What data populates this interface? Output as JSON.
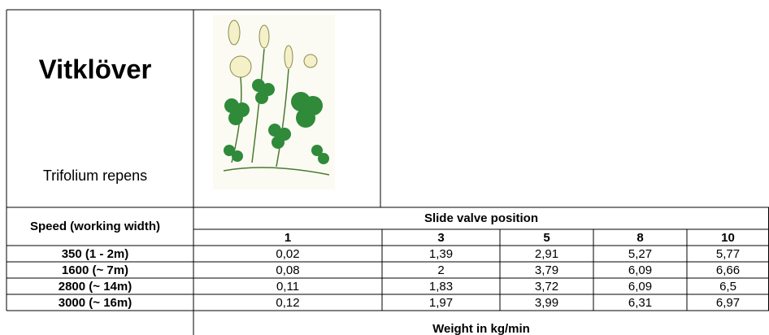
{
  "header": {
    "title": "Vitklöver",
    "subtitle": "Trifolium repens"
  },
  "table": {
    "row_header": "Speed (working width)",
    "column_group": "Slide valve position",
    "columns": [
      "1",
      "3",
      "5",
      "8",
      "10"
    ],
    "rows": [
      [
        "350 (1 - 2m)",
        "0,02",
        "1,39",
        "2,91",
        "5,27",
        "5,77"
      ],
      [
        "1600 (~ 7m)",
        "0,08",
        "2",
        "3,79",
        "6,09",
        "6,66"
      ],
      [
        "2800 (~ 14m)",
        "0,11",
        "1,83",
        "3,72",
        "6,09",
        "6,5"
      ],
      [
        "3000 (~ 16m)",
        "0,12",
        "1,97",
        "3,99",
        "6,31",
        "6,97"
      ]
    ],
    "footer": "Weight in kg/min"
  }
}
